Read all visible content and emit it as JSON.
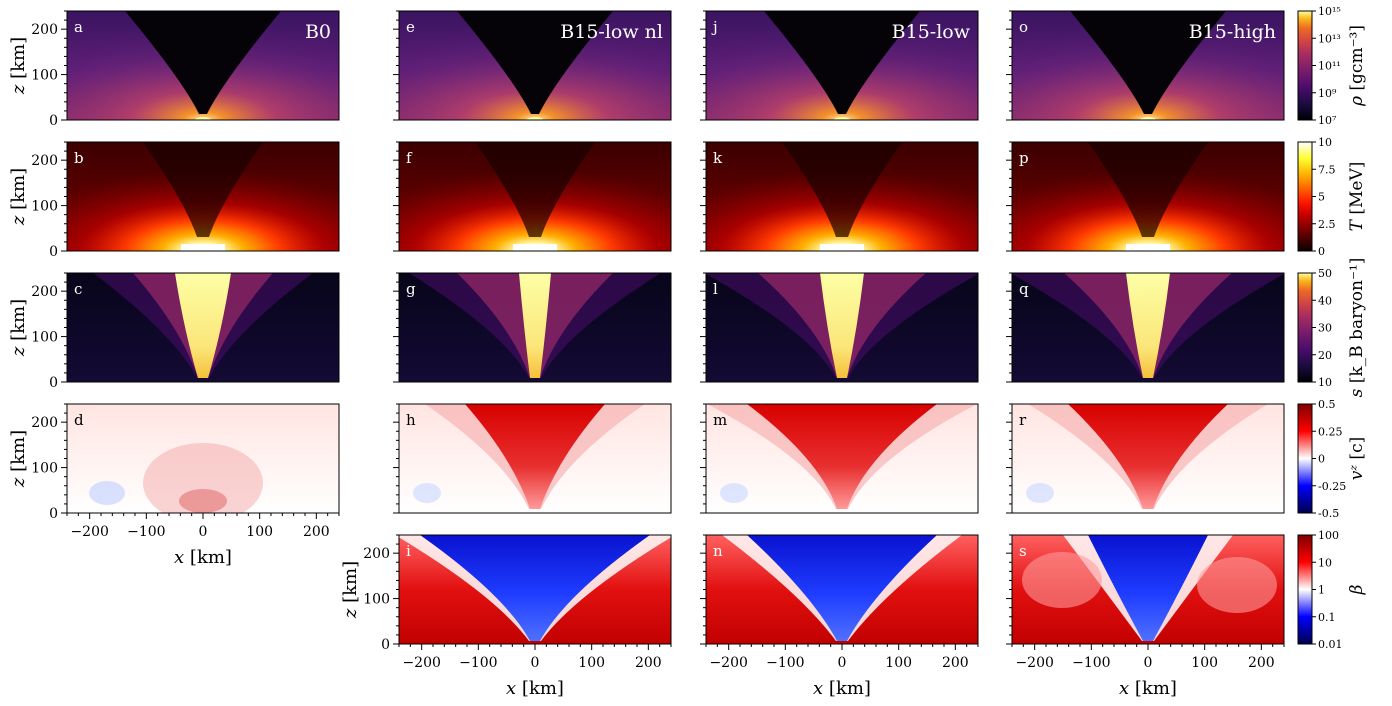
{
  "chart_data": {
    "type": "heatmap",
    "axes": {
      "x_label_main": "x",
      "x_label_unit": "[km]",
      "z_label_main": "z",
      "z_label_unit": "[km]",
      "x_range": [
        -240,
        240
      ],
      "z_range": [
        0,
        240
      ],
      "x_ticks": [
        -200,
        -100,
        0,
        100,
        200
      ],
      "x_tick_labels": [
        "−200",
        "−100",
        "0",
        "100",
        "200"
      ],
      "z_ticks": [
        0,
        100,
        200
      ],
      "z_tick_labels": [
        "0",
        "100",
        "200"
      ]
    },
    "models": [
      {
        "name": "B0",
        "panels": [
          "a",
          "b",
          "c",
          "d"
        ]
      },
      {
        "name": "B15-low nl",
        "panels": [
          "e",
          "f",
          "g",
          "h",
          "i"
        ]
      },
      {
        "name": "B15-low",
        "panels": [
          "j",
          "k",
          "l",
          "m",
          "n"
        ]
      },
      {
        "name": "B15-high",
        "panels": [
          "o",
          "p",
          "q",
          "r",
          "s"
        ]
      }
    ],
    "quantities": [
      {
        "key": "rho",
        "label_main": "ρ",
        "label_unit": "[gcm⁻³]",
        "scale": "log",
        "range": [
          10000000.0,
          1000000000000000.0
        ],
        "colormap": "inferno",
        "tick_labels": [
          "10⁷",
          "10⁹",
          "10¹¹",
          "10¹³",
          "10¹⁵"
        ]
      },
      {
        "key": "T",
        "label_main": "T",
        "label_unit": "[MeV]",
        "scale": "linear",
        "range": [
          0,
          10
        ],
        "colormap": "hot",
        "tick_labels": [
          "0",
          "2.5",
          "5",
          "7.5",
          "10"
        ]
      },
      {
        "key": "s",
        "label_main": "s",
        "label_unit": "[k_B baryon⁻¹]",
        "scale": "linear",
        "range": [
          10,
          50
        ],
        "colormap": "inferno",
        "tick_labels": [
          "10",
          "20",
          "30",
          "40",
          "50"
        ]
      },
      {
        "key": "vz",
        "label_main": "vᶻ",
        "label_unit": "[c]",
        "scale": "linear",
        "range": [
          -0.5,
          0.5
        ],
        "colormap": "seismic",
        "tick_labels": [
          "-0.5",
          "-0.25",
          "0",
          "0.25",
          "0.5"
        ]
      },
      {
        "key": "beta",
        "label_main": "β",
        "label_unit": "",
        "scale": "log",
        "range": [
          0.01,
          100
        ],
        "colormap": "seismic",
        "tick_labels": [
          "0.01",
          "0.1",
          "1",
          "10",
          "100"
        ]
      }
    ]
  }
}
